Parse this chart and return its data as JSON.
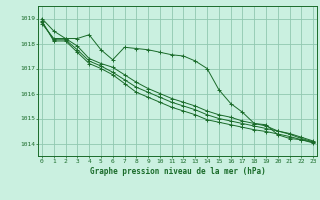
{
  "title": "Graphe pression niveau de la mer (hPa)",
  "background_color": "#caf0e0",
  "grid_color": "#90c8b0",
  "line_color": "#1a6b2a",
  "ylim": [
    1013.5,
    1019.5
  ],
  "yticks": [
    1014,
    1015,
    1016,
    1017,
    1018,
    1019
  ],
  "xlim": [
    -0.3,
    23.3
  ],
  "x_ticks": [
    0,
    1,
    2,
    3,
    4,
    5,
    6,
    7,
    8,
    9,
    10,
    11,
    12,
    13,
    14,
    15,
    16,
    17,
    18,
    19,
    20,
    21,
    22,
    23
  ],
  "series": [
    [
      1019.0,
      1018.5,
      1018.2,
      1018.2,
      1018.35,
      1017.75,
      1017.35,
      1017.85,
      1017.8,
      1017.75,
      1017.65,
      1017.55,
      1017.5,
      1017.3,
      1017.0,
      1016.15,
      1015.6,
      1015.25,
      1014.8,
      1014.75,
      1014.35,
      1014.2,
      1014.15,
      1014.05
    ],
    [
      1018.8,
      1018.2,
      1018.2,
      1017.9,
      1017.4,
      1017.2,
      1017.05,
      1016.75,
      1016.45,
      1016.2,
      1016.0,
      1015.8,
      1015.65,
      1015.5,
      1015.3,
      1015.15,
      1015.05,
      1014.9,
      1014.8,
      1014.7,
      1014.5,
      1014.4,
      1014.25,
      1014.1
    ],
    [
      1018.85,
      1018.15,
      1018.15,
      1017.75,
      1017.3,
      1017.1,
      1016.85,
      1016.55,
      1016.25,
      1016.05,
      1015.85,
      1015.65,
      1015.5,
      1015.35,
      1015.15,
      1015.0,
      1014.9,
      1014.8,
      1014.7,
      1014.6,
      1014.5,
      1014.37,
      1014.2,
      1014.07
    ],
    [
      1018.9,
      1018.1,
      1018.1,
      1017.65,
      1017.2,
      1017.0,
      1016.75,
      1016.4,
      1016.05,
      1015.85,
      1015.65,
      1015.45,
      1015.3,
      1015.15,
      1014.95,
      1014.85,
      1014.75,
      1014.65,
      1014.55,
      1014.48,
      1014.38,
      1014.28,
      1014.15,
      1014.02
    ]
  ]
}
